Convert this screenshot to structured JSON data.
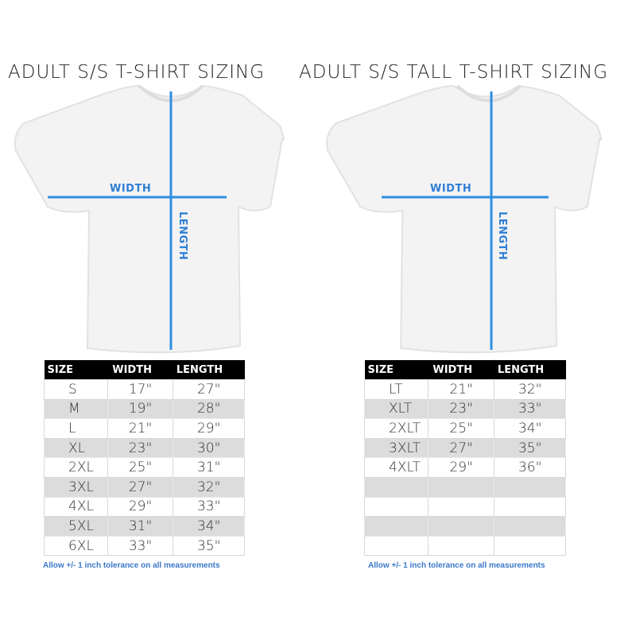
{
  "left": {
    "title": "ADULT S/S T-SHIRT SIZING",
    "width_label": "WIDTH",
    "length_label": "LENGTH",
    "headers": [
      "SIZE",
      "WIDTH",
      "LENGTH"
    ],
    "rows": [
      [
        "S",
        "17\"",
        "27\""
      ],
      [
        "M",
        "19\"",
        "28\""
      ],
      [
        "L",
        "21\"",
        "29\""
      ],
      [
        "XL",
        "23\"",
        "30\""
      ],
      [
        "2XL",
        "25\"",
        "31\""
      ],
      [
        "3XL",
        "27\"",
        "32\""
      ],
      [
        "4XL",
        "29\"",
        "33\""
      ],
      [
        "5XL",
        "31\"",
        "34\""
      ],
      [
        "6XL",
        "33\"",
        "35\""
      ]
    ],
    "note": "Allow +/- 1 inch tolerance on all measurements"
  },
  "right": {
    "title": "ADULT S/S TALL T-SHIRT SIZING",
    "width_label": "WIDTH",
    "length_label": "LENGTH",
    "headers": [
      "SIZE",
      "WIDTH",
      "LENGTH"
    ],
    "rows": [
      [
        "LT",
        "21\"",
        "32\""
      ],
      [
        "XLT",
        "23\"",
        "33\""
      ],
      [
        "2XLT",
        "25\"",
        "34\""
      ],
      [
        "3XLT",
        "27\"",
        "35\""
      ],
      [
        "4XLT",
        "29\"",
        "36\""
      ],
      [
        "",
        "",
        ""
      ],
      [
        "",
        "",
        ""
      ],
      [
        "",
        "",
        ""
      ],
      [
        "",
        "",
        ""
      ]
    ],
    "note": "Allow +/- 1 inch tolerance on all measurements"
  },
  "colors": {
    "measure_line": "#2f8fe0",
    "header_bg": "#000000",
    "alt_row": "#dcdcdc",
    "note": "#3b78c9"
  }
}
